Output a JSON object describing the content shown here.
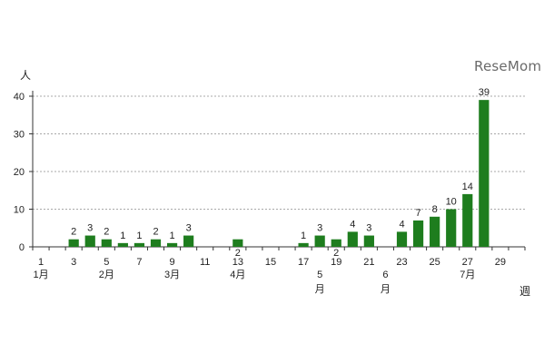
{
  "watermark": "ReseMom",
  "chart_data": {
    "type": "bar",
    "ylabel": "人",
    "xlabel": "週",
    "ylim": [
      0,
      40
    ],
    "yticks": [
      0,
      10,
      20,
      30,
      40
    ],
    "grid": true,
    "bar_color": "#1e7d1e",
    "x_ticks": [
      "1",
      "3",
      "5",
      "7",
      "9",
      "11",
      "13",
      "15",
      "17",
      "19",
      "21",
      "23",
      "25",
      "27",
      "29"
    ],
    "month_labels": [
      {
        "week": 1,
        "label": "1月"
      },
      {
        "week": 5,
        "label": "2月"
      },
      {
        "week": 9,
        "label": "3月"
      },
      {
        "week": 13,
        "label": "4月"
      },
      {
        "week": 18,
        "label": "5"
      },
      {
        "week": 18,
        "label": "月"
      },
      {
        "week": 22,
        "label": "6"
      },
      {
        "week": 22,
        "label": "月"
      },
      {
        "week": 27,
        "label": "7月"
      }
    ],
    "weeks": [
      3,
      4,
      5,
      6,
      7,
      8,
      9,
      10,
      13,
      17,
      18,
      19,
      20,
      21,
      23,
      24,
      25,
      26,
      27,
      28
    ],
    "values": [
      2,
      3,
      2,
      1,
      1,
      2,
      1,
      3,
      2,
      1,
      3,
      2,
      4,
      3,
      4,
      7,
      8,
      10,
      14,
      39
    ],
    "data_labels": [
      "2",
      "3",
      "2",
      "1",
      "1",
      "2",
      "1",
      "3",
      "2",
      "1",
      "3",
      "2",
      "4",
      "3",
      "4",
      "7",
      "8",
      "10",
      "14",
      "39"
    ]
  }
}
